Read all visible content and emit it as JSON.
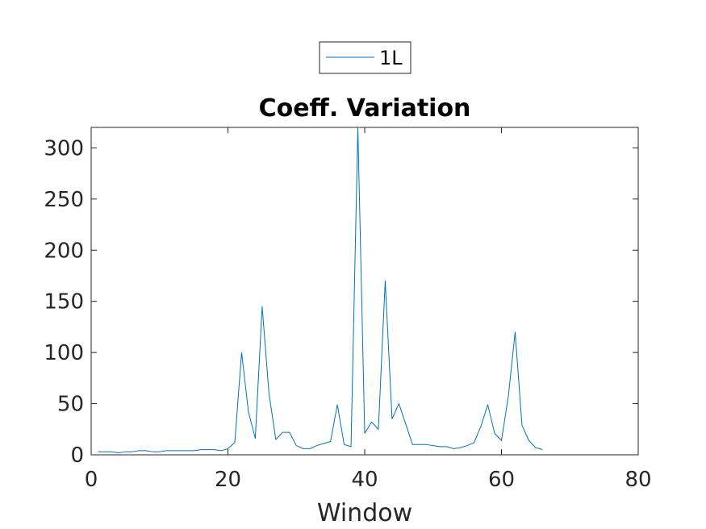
{
  "chart_data": {
    "type": "line",
    "title": "Coeff. Variation",
    "xlabel": "Window",
    "ylabel": "",
    "xlim": [
      0,
      80
    ],
    "ylim": [
      0,
      320
    ],
    "xticks": [
      0,
      20,
      40,
      60,
      80
    ],
    "yticks": [
      0,
      50,
      100,
      150,
      200,
      250,
      300
    ],
    "grid": false,
    "legend_position": "top-center",
    "colors": {
      "series": "#0072bd",
      "axes": "#262626"
    },
    "series": [
      {
        "name": "1L",
        "x": [
          1,
          2,
          3,
          4,
          5,
          6,
          7,
          8,
          9,
          10,
          11,
          12,
          13,
          14,
          15,
          16,
          17,
          18,
          19,
          20,
          21,
          22,
          23,
          24,
          25,
          26,
          27,
          28,
          29,
          30,
          31,
          32,
          33,
          34,
          35,
          36,
          37,
          38,
          39,
          40,
          41,
          42,
          43,
          44,
          45,
          46,
          47,
          48,
          49,
          50,
          51,
          52,
          53,
          54,
          55,
          56,
          57,
          58,
          59,
          60,
          61,
          62,
          63,
          64,
          65,
          66
        ],
        "y": [
          3,
          3,
          3,
          2,
          3,
          3,
          4,
          4,
          3,
          3,
          4,
          4,
          4,
          4,
          4,
          5,
          5,
          5,
          4,
          6,
          12,
          100,
          42,
          16,
          145,
          60,
          15,
          22,
          22,
          9,
          6,
          6,
          9,
          11,
          13,
          49,
          10,
          8,
          320,
          21,
          32,
          25,
          170,
          35,
          50,
          30,
          10,
          10,
          10,
          9,
          8,
          8,
          6,
          7,
          9,
          12,
          28,
          49,
          21,
          14,
          57,
          120,
          29,
          14,
          7,
          5
        ]
      }
    ]
  }
}
